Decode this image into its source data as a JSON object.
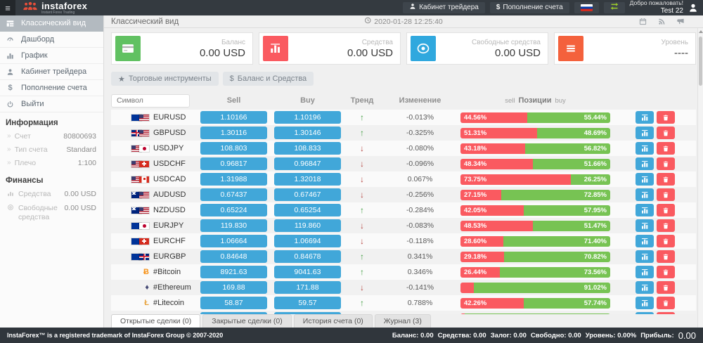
{
  "header": {
    "logo_name": "instaforex",
    "logo_sub": "Instant Forex Trading",
    "trader_cabinet_label": "Кабинет трейдера",
    "deposit_label": "Пополнение счета",
    "welcome_line1": "Добро пожаловать!",
    "welcome_line2": "Test 22"
  },
  "datebar": {
    "page_title": "Классический вид",
    "datetime": "2020-01-28 12:25:40",
    "icons": [
      "calendar",
      "rss",
      "megaphone"
    ]
  },
  "sidebar": {
    "active_item": {
      "icon": "grid",
      "label": "Классический вид"
    },
    "items": [
      {
        "icon": "gauge",
        "label": "Дашборд"
      },
      {
        "icon": "bars",
        "label": "График"
      },
      {
        "icon": "user",
        "label": "Кабинет трейдера"
      },
      {
        "icon": "dollar",
        "label": "Пополнение счета"
      },
      {
        "icon": "power",
        "label": "Выйти"
      }
    ],
    "info_title": "Информация",
    "info_rows": [
      {
        "label": "Счет",
        "value": "80800693"
      },
      {
        "label": "Тип счета",
        "value": "Standard"
      },
      {
        "label": "Плечо",
        "value": "1:100"
      }
    ],
    "finance_title": "Финансы",
    "finance_rows": [
      {
        "icon": "fin-chart",
        "label": "Средства",
        "value": "0.00 USD"
      },
      {
        "icon": "fin-coins",
        "label": "Свободные средства",
        "value": "0.00 USD"
      }
    ]
  },
  "cards": [
    {
      "icon": "credit-card",
      "color": "#61c162",
      "label": "Баланс",
      "value": "0.00 USD"
    },
    {
      "icon": "bar-chart",
      "color": "#fa5a60",
      "label": "Средства",
      "value": "0.00 USD"
    },
    {
      "icon": "coin",
      "color": "#30a8de",
      "label": "Свободные средства",
      "value": "0.00 USD"
    },
    {
      "icon": "menu",
      "color": "#f4613c",
      "label": "Уровень",
      "value": "----"
    }
  ],
  "filters": [
    {
      "icon": "star",
      "label": "Торговые инструменты"
    },
    {
      "icon": "dollar",
      "label": "Баланс и Средства"
    }
  ],
  "table": {
    "symbol_placeholder": "Символ",
    "headers": {
      "sell": "Sell",
      "buy": "Buy",
      "trend": "Тренд",
      "change": "Изменение"
    },
    "positions_header": {
      "left": "sell",
      "title": "Позиции",
      "right": "buy"
    },
    "rows": [
      {
        "flags": [
          "eu",
          "us"
        ],
        "symbol": "EURUSD",
        "sell": "1.10166",
        "buy": "1.10196",
        "trend": "up",
        "change": "-0.013%",
        "sell_pct": 44.56,
        "sell_label": "44.56%",
        "buy_pct": 55.44,
        "buy_label": "55.44%"
      },
      {
        "flags": [
          "gb",
          "us"
        ],
        "symbol": "GBPUSD",
        "sell": "1.30116",
        "buy": "1.30146",
        "trend": "up",
        "change": "-0.325%",
        "sell_pct": 51.31,
        "sell_label": "51.31%",
        "buy_pct": 48.69,
        "buy_label": "48.69%"
      },
      {
        "flags": [
          "us",
          "jp"
        ],
        "symbol": "USDJPY",
        "sell": "108.803",
        "buy": "108.833",
        "trend": "down",
        "change": "-0.080%",
        "sell_pct": 43.18,
        "sell_label": "43.18%",
        "buy_pct": 56.82,
        "buy_label": "56.82%"
      },
      {
        "flags": [
          "us",
          "ch"
        ],
        "symbol": "USDCHF",
        "sell": "0.96817",
        "buy": "0.96847",
        "trend": "down",
        "change": "-0.096%",
        "sell_pct": 48.34,
        "sell_label": "48.34%",
        "buy_pct": 51.66,
        "buy_label": "51.66%"
      },
      {
        "flags": [
          "us",
          "ca"
        ],
        "symbol": "USDCAD",
        "sell": "1.31988",
        "buy": "1.32018",
        "trend": "down",
        "change": "0.067%",
        "sell_pct": 73.75,
        "sell_label": "73.75%",
        "buy_pct": 26.25,
        "buy_label": "26.25%"
      },
      {
        "flags": [
          "au",
          "us"
        ],
        "symbol": "AUDUSD",
        "sell": "0.67437",
        "buy": "0.67467",
        "trend": "down",
        "change": "-0.256%",
        "sell_pct": 27.15,
        "sell_label": "27.15%",
        "buy_pct": 72.85,
        "buy_label": "72.85%"
      },
      {
        "flags": [
          "nz",
          "us"
        ],
        "symbol": "NZDUSD",
        "sell": "0.65224",
        "buy": "0.65254",
        "trend": "up",
        "change": "-0.284%",
        "sell_pct": 42.05,
        "sell_label": "42.05%",
        "buy_pct": 57.95,
        "buy_label": "57.95%"
      },
      {
        "flags": [
          "eu",
          "jp"
        ],
        "symbol": "EURJPY",
        "sell": "119.830",
        "buy": "119.860",
        "trend": "down",
        "change": "-0.083%",
        "sell_pct": 48.53,
        "sell_label": "48.53%",
        "buy_pct": 51.47,
        "buy_label": "51.47%"
      },
      {
        "flags": [
          "eu",
          "ch"
        ],
        "symbol": "EURCHF",
        "sell": "1.06664",
        "buy": "1.06694",
        "trend": "down",
        "change": "-0.118%",
        "sell_pct": 28.6,
        "sell_label": "28.60%",
        "buy_pct": 71.4,
        "buy_label": "71.40%"
      },
      {
        "flags": [
          "eu",
          "gb"
        ],
        "symbol": "EURGBP",
        "sell": "0.84648",
        "buy": "0.84678",
        "trend": "up",
        "change": "0.341%",
        "sell_pct": 29.18,
        "sell_label": "29.18%",
        "buy_pct": 70.82,
        "buy_label": "70.82%"
      },
      {
        "crypto": "btc",
        "symbol": "#Bitcoin",
        "sell": "8921.63",
        "buy": "9041.63",
        "trend": "up",
        "change": "0.346%",
        "sell_pct": 26.44,
        "sell_label": "26.44%",
        "buy_pct": 73.56,
        "buy_label": "73.56%"
      },
      {
        "crypto": "eth",
        "symbol": "#Ethereum",
        "sell": "169.88",
        "buy": "171.88",
        "trend": "down",
        "change": "-0.141%",
        "sell_pct": 8.98,
        "sell_label": "",
        "buy_pct": 91.02,
        "buy_label": "91.02%"
      },
      {
        "crypto": "ltc",
        "symbol": "#Litecoin",
        "sell": "58.87",
        "buy": "59.57",
        "trend": "up",
        "change": "0.788%",
        "sell_pct": 42.26,
        "sell_label": "42.26%",
        "buy_pct": 57.74,
        "buy_label": "57.74%"
      },
      {
        "partial": true,
        "flags": [],
        "symbol": "",
        "sell": "",
        "buy": "",
        "trend": "",
        "change": "",
        "sell_pct": 3,
        "sell_label": "",
        "buy_pct": 97,
        "buy_label": ""
      }
    ]
  },
  "bottom_tabs": [
    {
      "label": "Открытые сделки (0)",
      "active": true
    },
    {
      "label": "Закрытые сделки (0)",
      "active": false
    },
    {
      "label": "История счета (0)",
      "active": false
    },
    {
      "label": "Журнал (3)",
      "active": false
    }
  ],
  "footer": {
    "left": "InstaForex™ is a registered trademark of InstaForex Group © 2007-2020",
    "right_items": [
      "Баланс: 0.00",
      "Средства: 0.00",
      "Залог: 0.00",
      "Свободно: 0.00",
      "Уровень: 0.00%"
    ],
    "profit_label": "Прибыль:",
    "profit_value": "0.00"
  }
}
